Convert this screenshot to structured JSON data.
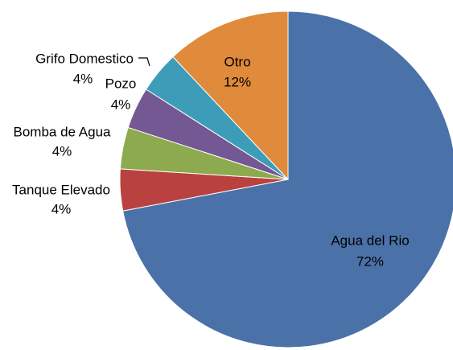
{
  "chart_data": {
    "type": "pie",
    "categories": [
      "Agua del Rio",
      "Tanque Elevado",
      "Bomba de Agua",
      "Pozo",
      "Grifo Domestico",
      "Otro"
    ],
    "values": [
      72,
      4,
      4,
      4,
      4,
      12
    ],
    "value_labels": [
      "72%",
      "4%",
      "4%",
      "4%",
      "4%",
      "12%"
    ],
    "colors": [
      "#4a72a8",
      "#b9413f",
      "#8dab4e",
      "#735893",
      "#3d9db9",
      "#e08a3c"
    ]
  }
}
